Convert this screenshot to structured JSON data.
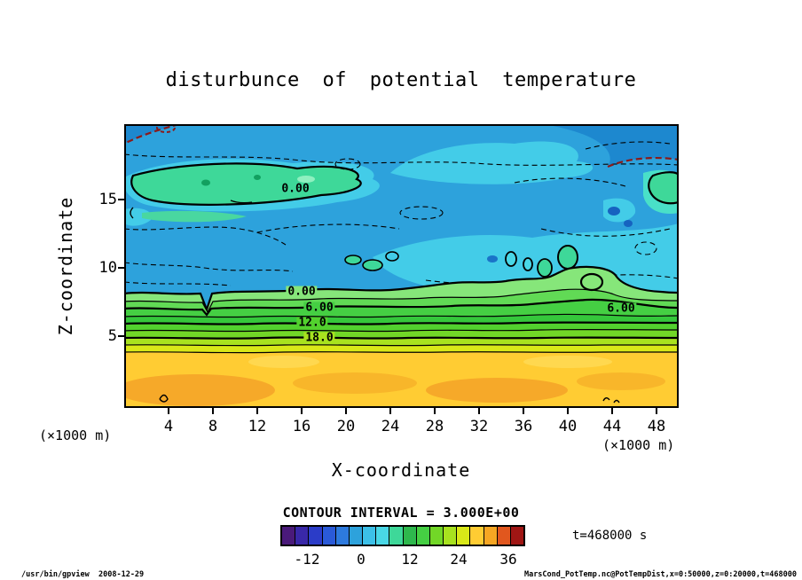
{
  "chart_data": {
    "type": "heatmap",
    "variant": "filled contour plot (gpview output)",
    "title": "disturbunce of potential temperature",
    "xlabel": "X-coordinate",
    "ylabel": "Z-coordinate",
    "axis_unit_left": "(×1000 m)",
    "axis_unit_right": "(×1000 m)",
    "x_ticks": [
      "4",
      "8",
      "12",
      "16",
      "20",
      "24",
      "28",
      "32",
      "36",
      "40",
      "44",
      "48"
    ],
    "y_ticks": [
      "15",
      "10",
      "5"
    ],
    "xlim": [
      0,
      50
    ],
    "ylim": [
      0,
      20
    ],
    "contour_interval": 3.0,
    "contour_interval_label": "CONTOUR INTERVAL = 3.000E+00",
    "line_styles": {
      "positive": "solid",
      "negative": "dashed"
    },
    "solid_levels_visible": [
      0,
      3,
      6,
      9,
      12,
      15,
      18,
      21,
      24
    ],
    "contour_labels": [
      {
        "text": "0.00",
        "value": 0,
        "region": "upper-left closed contour"
      },
      {
        "text": "0.00",
        "value": 0,
        "region": "top of lower band stack"
      },
      {
        "text": "6.00",
        "value": 6,
        "region": "lower band stack"
      },
      {
        "text": "12.0",
        "value": 12,
        "region": "lower band stack"
      },
      {
        "text": "18.0",
        "value": 18,
        "region": "lower band stack"
      },
      {
        "text": "6.00",
        "value": 6,
        "region": "right side of band stack"
      }
    ],
    "colorbar": {
      "ticks": [
        "-12",
        "0",
        "12",
        "24",
        "36"
      ],
      "colors": [
        "#4a1a7a",
        "#3928a8",
        "#2b3cc8",
        "#2a5ad8",
        "#2d7ade",
        "#2da2dc",
        "#3cc0e8",
        "#49d7e6",
        "#3ed899",
        "#2eb84d",
        "#45cf43",
        "#72d727",
        "#a8e21f",
        "#d9e818",
        "#ffcc33",
        "#f6a623",
        "#e1571e",
        "#a01614"
      ]
    },
    "time_label": "t=468000 s",
    "field_summary": {
      "description": "Potential temperature disturbance: strongly positive (about 24-36, yellow/orange) below z of roughly 4.5; stacked green bands 0-21 with solid contours every 3 between z of 4.5 and 8; near zero to weakly negative (blue/cyan with dashed contours) above z of 8; closed 0-contour pockets near z of 15 upper-left and along z of 9-10.",
      "approx_mean_profile": {
        "z_km": [
          0,
          2,
          4,
          5,
          6,
          7,
          8,
          10,
          12,
          14,
          16,
          18,
          20
        ],
        "value": [
          30,
          28,
          24,
          18,
          12,
          6,
          0,
          -1,
          0,
          -1,
          -2,
          -1,
          -3
        ]
      }
    }
  },
  "footer": {
    "left": "/usr/bin/gpview  2008-12-29",
    "right": "MarsCond_PotTemp.nc@PotTempDist,x=0:50000,z=0:20000,t=468000"
  }
}
